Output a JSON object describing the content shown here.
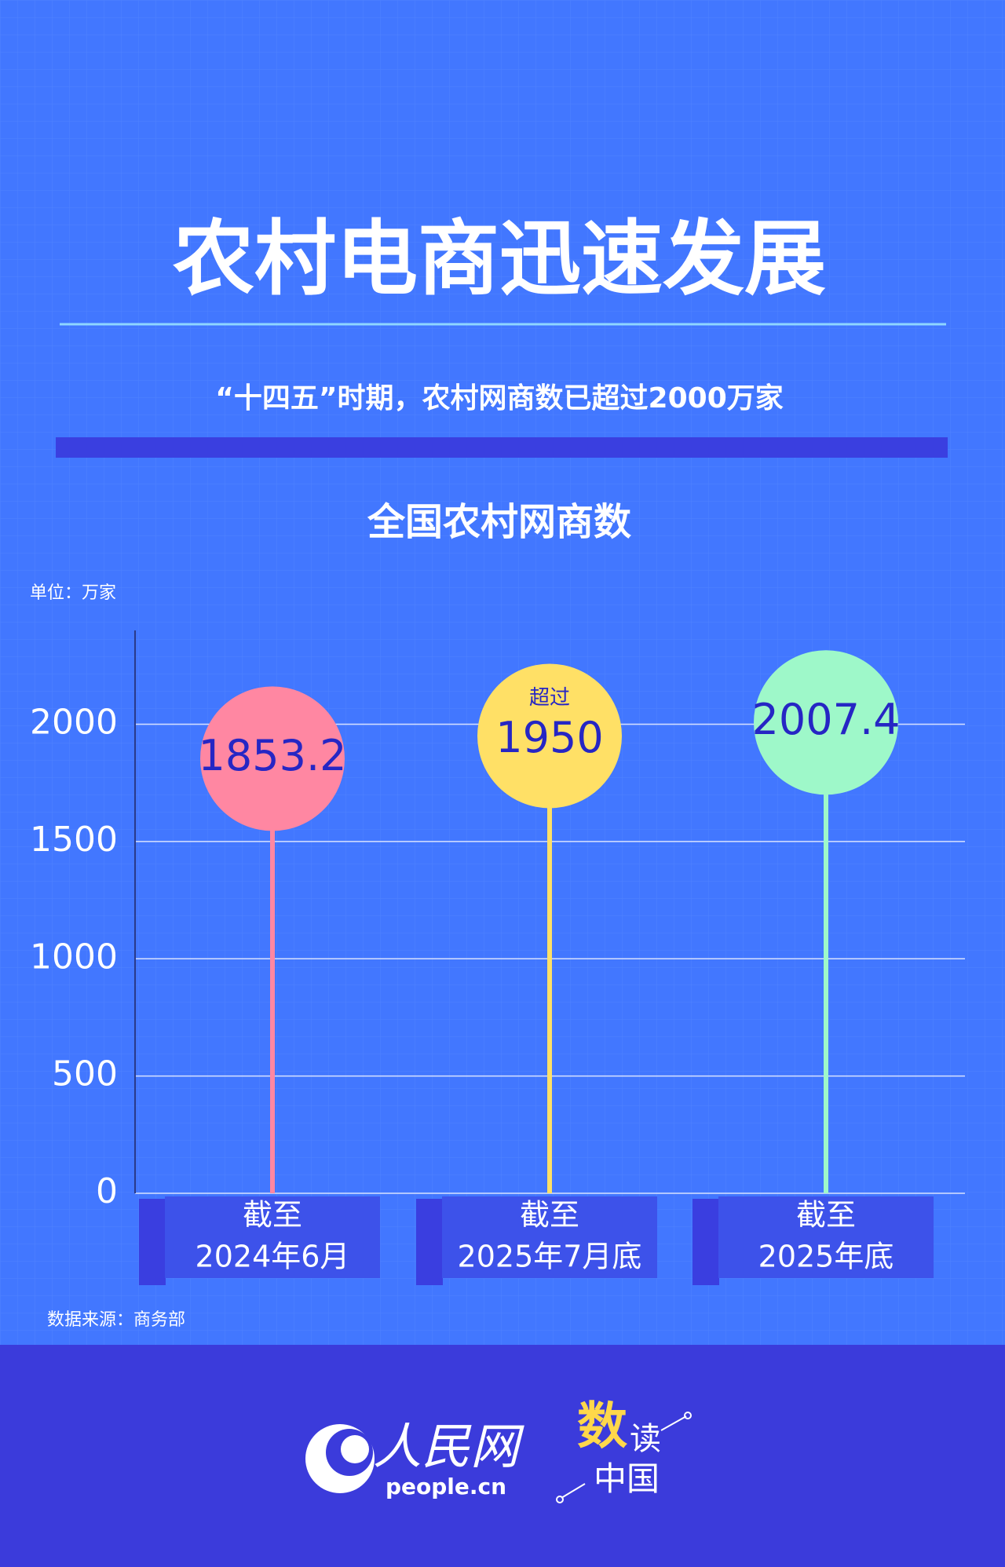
{
  "chart_data": {
    "type": "lollipop",
    "title": "农村电商迅速发展",
    "subtitle": "“十四五”时期，农村网商数已超过2000万家",
    "chart_title": "全国农村网商数",
    "unit": "单位：万家",
    "source": "数据来源：商务部",
    "categories": [
      [
        "截至",
        "2024年6月"
      ],
      [
        "截至",
        "2025年7月底"
      ],
      [
        "截至",
        "2025年底"
      ]
    ],
    "series": [
      {
        "colors": [
          "#ff87a2",
          "#ffe066",
          "#9ef8c9"
        ],
        "values": [
          1853.2,
          1950,
          2007.4
        ],
        "value_notes": [
          null,
          "超过",
          null
        ]
      }
    ],
    "ylim": [
      0,
      2400
    ],
    "yticks": [
      0,
      500,
      1000,
      1500,
      2000
    ],
    "grid": true
  },
  "footer": {
    "logo": "人民网",
    "site": "people.cn",
    "brand": [
      "数",
      "读",
      "中国"
    ]
  }
}
